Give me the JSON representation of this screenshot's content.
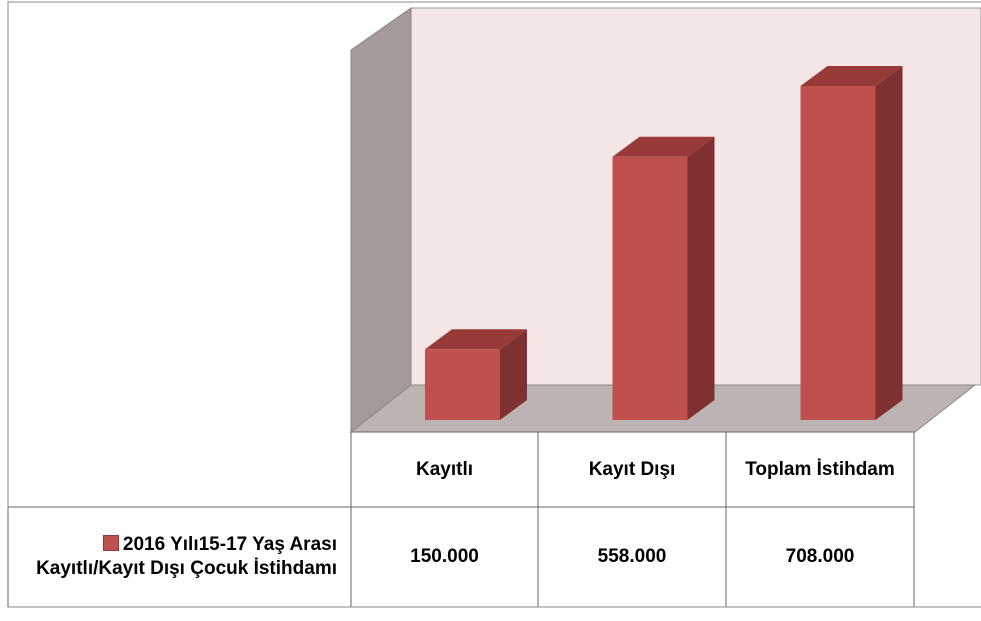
{
  "chart_data": {
    "type": "bar3d",
    "categories": [
      "Kayıtlı",
      "Kayıt Dışı",
      "Toplam İstihdam"
    ],
    "series": [
      {
        "name": "2016 Yılı15-17 Yaş Arası Kayıtlı/Kayıt Dışı Çocuk İstihdamı",
        "color": "#c0504d",
        "values": [
          150000,
          558000,
          708000
        ],
        "value_labels": [
          "150.000",
          "558.000",
          "708.000"
        ]
      }
    ]
  }
}
